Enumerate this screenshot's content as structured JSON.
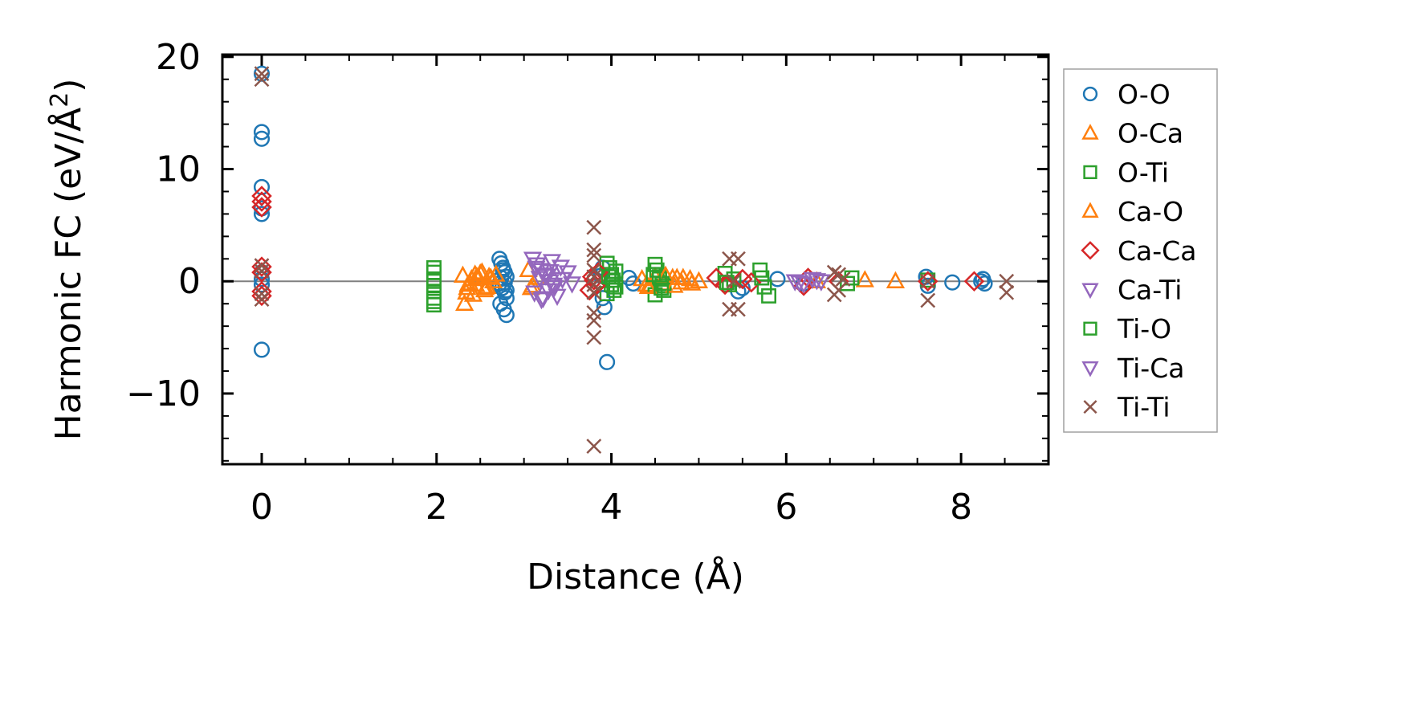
{
  "chart_data": {
    "type": "scatter",
    "xlabel": "Distance (Å)",
    "ylabel": "Harmonic FC (eV/Å²)",
    "ylabel_main": "Harmonic FC (eV/Å",
    "ylabel_sup": "2",
    "ylabel_close": ")",
    "xlim": [
      -0.45,
      9.0
    ],
    "ylim": [
      -16.3,
      20.2
    ],
    "x_ticks": [
      0,
      2,
      4,
      6,
      8
    ],
    "x_tick_labels": [
      "0",
      "2",
      "4",
      "6",
      "8"
    ],
    "y_ticks": [
      -10,
      0,
      10,
      20
    ],
    "y_tick_labels": [
      "−10",
      "0",
      "10",
      "20"
    ],
    "x_minor_step": 0.5,
    "y_minor_step": 2,
    "zero_line": true,
    "grid": false,
    "legend_position": "outside-right",
    "series": [
      {
        "name": "O-O",
        "marker": "circle",
        "color": "#1f77b4",
        "x": [
          0,
          0,
          0,
          0,
          0,
          0,
          0,
          0,
          0,
          0,
          2.72,
          2.74,
          2.76,
          2.78,
          2.8,
          2.72,
          2.75,
          2.78,
          2.8,
          2.73,
          2.77,
          2.8,
          2.74,
          2.78,
          2.76,
          2.8,
          3.9,
          3.9,
          3.92,
          3.88,
          3.95,
          4.2,
          4.25,
          5.5,
          5.45,
          5.9,
          6.2,
          7.6,
          7.62,
          7.9,
          8.25,
          8.27,
          8.23
        ],
        "y": [
          18.5,
          13.3,
          12.7,
          8.4,
          6.5,
          6.0,
          0.8,
          0.2,
          -0.3,
          -6.1,
          2.0,
          1.6,
          1.2,
          0.8,
          0.4,
          -0.2,
          -0.6,
          -1.0,
          -1.5,
          -2.0,
          -2.5,
          -3.0,
          0.3,
          -0.1,
          1.0,
          -0.8,
          1.2,
          -1.5,
          -2.3,
          0.5,
          -7.2,
          0.3,
          -0.2,
          -0.6,
          -0.9,
          0.2,
          -0.2,
          0.4,
          -0.4,
          -0.1,
          0.2,
          -0.2,
          0.0
        ]
      },
      {
        "name": "O-Ca",
        "marker": "triangle-up",
        "color": "#ff7f0e",
        "x": [
          2.3,
          2.35,
          2.4,
          2.45,
          2.5,
          2.55,
          2.6,
          2.65,
          2.38,
          2.48,
          2.58,
          2.68,
          2.32,
          2.42,
          2.52,
          3.05,
          3.1,
          3.15,
          4.35,
          4.4,
          4.5,
          4.6,
          4.7,
          4.8,
          4.9,
          5.0,
          4.45,
          4.75,
          6.9,
          7.25
        ],
        "y": [
          0.5,
          -0.6,
          0.2,
          -0.3,
          0.7,
          -0.8,
          0.4,
          0.0,
          -0.2,
          0.3,
          -0.5,
          0.6,
          -2.0,
          -1.2,
          0.8,
          1.0,
          -0.4,
          0.3,
          0.2,
          -0.3,
          0.4,
          -0.2,
          0.3,
          -0.1,
          0.2,
          0.0,
          -0.4,
          0.3,
          0.1,
          0.0
        ]
      },
      {
        "name": "O-Ti",
        "marker": "square",
        "color": "#2ca02c",
        "x": [
          1.97,
          1.97,
          1.97,
          1.97,
          1.97,
          1.97,
          1.97,
          3.95,
          3.98,
          4.0,
          4.02,
          4.05,
          3.95,
          4.0,
          4.05,
          4.5,
          4.52,
          4.55,
          4.58,
          4.6,
          4.5,
          4.55,
          4.6,
          5.3,
          5.35,
          5.4,
          5.7,
          5.75,
          5.8,
          6.75,
          7.62
        ],
        "y": [
          1.2,
          0.8,
          0.2,
          -0.4,
          -0.9,
          -1.5,
          -2.1,
          1.6,
          1.2,
          0.6,
          0.1,
          -0.5,
          -1.1,
          -0.3,
          0.9,
          1.5,
          1.0,
          0.4,
          -0.2,
          -0.8,
          -1.2,
          0.2,
          -0.4,
          0.7,
          -0.3,
          0.2,
          1.0,
          -0.5,
          -1.3,
          0.3,
          0.1
        ]
      },
      {
        "name": "Ca-O",
        "marker": "triangle-up",
        "color": "#ff7f0e",
        "x": [
          2.36,
          2.46,
          2.56,
          2.62,
          2.34,
          2.44,
          3.08,
          4.42,
          4.62,
          4.72,
          4.82,
          4.92,
          6.35
        ],
        "y": [
          -0.3,
          0.4,
          -0.6,
          0.3,
          -1.0,
          0.6,
          -0.6,
          -0.5,
          0.5,
          -0.4,
          0.3,
          -0.2,
          0.0
        ]
      },
      {
        "name": "Ca-Ca",
        "marker": "diamond",
        "color": "#d62728",
        "x": [
          0,
          0,
          0,
          0,
          0,
          0,
          0,
          3.78,
          3.82,
          3.8,
          3.85,
          3.75,
          5.2,
          5.3,
          5.5,
          5.6,
          6.2,
          6.25,
          6.6,
          7.62,
          8.15
        ],
        "y": [
          7.6,
          7.1,
          6.6,
          1.3,
          0.8,
          -0.9,
          -1.3,
          0.4,
          -0.4,
          0.1,
          0.8,
          -0.8,
          0.3,
          -0.3,
          0.2,
          -0.1,
          -0.4,
          0.3,
          0.0,
          0.0,
          0.0
        ]
      },
      {
        "name": "Ca-Ti",
        "marker": "triangle-down",
        "color": "#9467bd",
        "x": [
          3.1,
          3.15,
          3.2,
          3.25,
          3.3,
          3.35,
          3.12,
          3.22,
          3.32,
          3.42,
          3.5,
          3.55,
          3.18,
          3.28,
          3.38,
          6.1,
          6.2,
          6.3,
          6.4
        ],
        "y": [
          2.0,
          1.5,
          1.0,
          0.5,
          0.0,
          -0.5,
          -1.0,
          -1.5,
          1.8,
          1.3,
          0.8,
          -0.2,
          0.3,
          -0.8,
          -1.3,
          0.0,
          -0.2,
          0.2,
          0.0
        ]
      },
      {
        "name": "Ti-O",
        "marker": "square",
        "color": "#2ca02c",
        "x": [
          1.97,
          1.97,
          3.97,
          4.03,
          4.48,
          4.57,
          5.32,
          5.72,
          6.7
        ],
        "y": [
          0.0,
          -1.8,
          0.4,
          -0.8,
          0.6,
          -0.6,
          -0.1,
          0.3,
          -0.2
        ]
      },
      {
        "name": "Ti-Ca",
        "marker": "triangle-down",
        "color": "#9467bd",
        "x": [
          3.14,
          3.24,
          3.34,
          3.44,
          3.2,
          3.3,
          6.15,
          6.35
        ],
        "y": [
          1.2,
          0.6,
          -0.3,
          0.2,
          -1.6,
          0.9,
          -0.1,
          0.1
        ]
      },
      {
        "name": "Ti-Ti",
        "marker": "x",
        "color": "#8c564b",
        "x": [
          0,
          0,
          0,
          0,
          0,
          0,
          3.8,
          3.8,
          3.8,
          3.8,
          3.8,
          3.8,
          3.8,
          3.8,
          3.8,
          3.8,
          3.8,
          5.35,
          5.45,
          5.35,
          5.45,
          5.4,
          6.55,
          6.6,
          6.65,
          6.55,
          6.6,
          7.62,
          7.62,
          8.52,
          8.52
        ],
        "y": [
          18.5,
          18.0,
          1.4,
          0.9,
          -1.1,
          -1.6,
          4.8,
          2.8,
          2.3,
          1.0,
          0.4,
          -0.3,
          -1.0,
          -2.8,
          -3.5,
          -5.0,
          -14.7,
          2.0,
          2.0,
          -2.5,
          -2.5,
          0.0,
          0.8,
          0.6,
          0.2,
          -1.2,
          -0.8,
          0.0,
          -1.7,
          0.0,
          -1.0
        ]
      }
    ]
  }
}
